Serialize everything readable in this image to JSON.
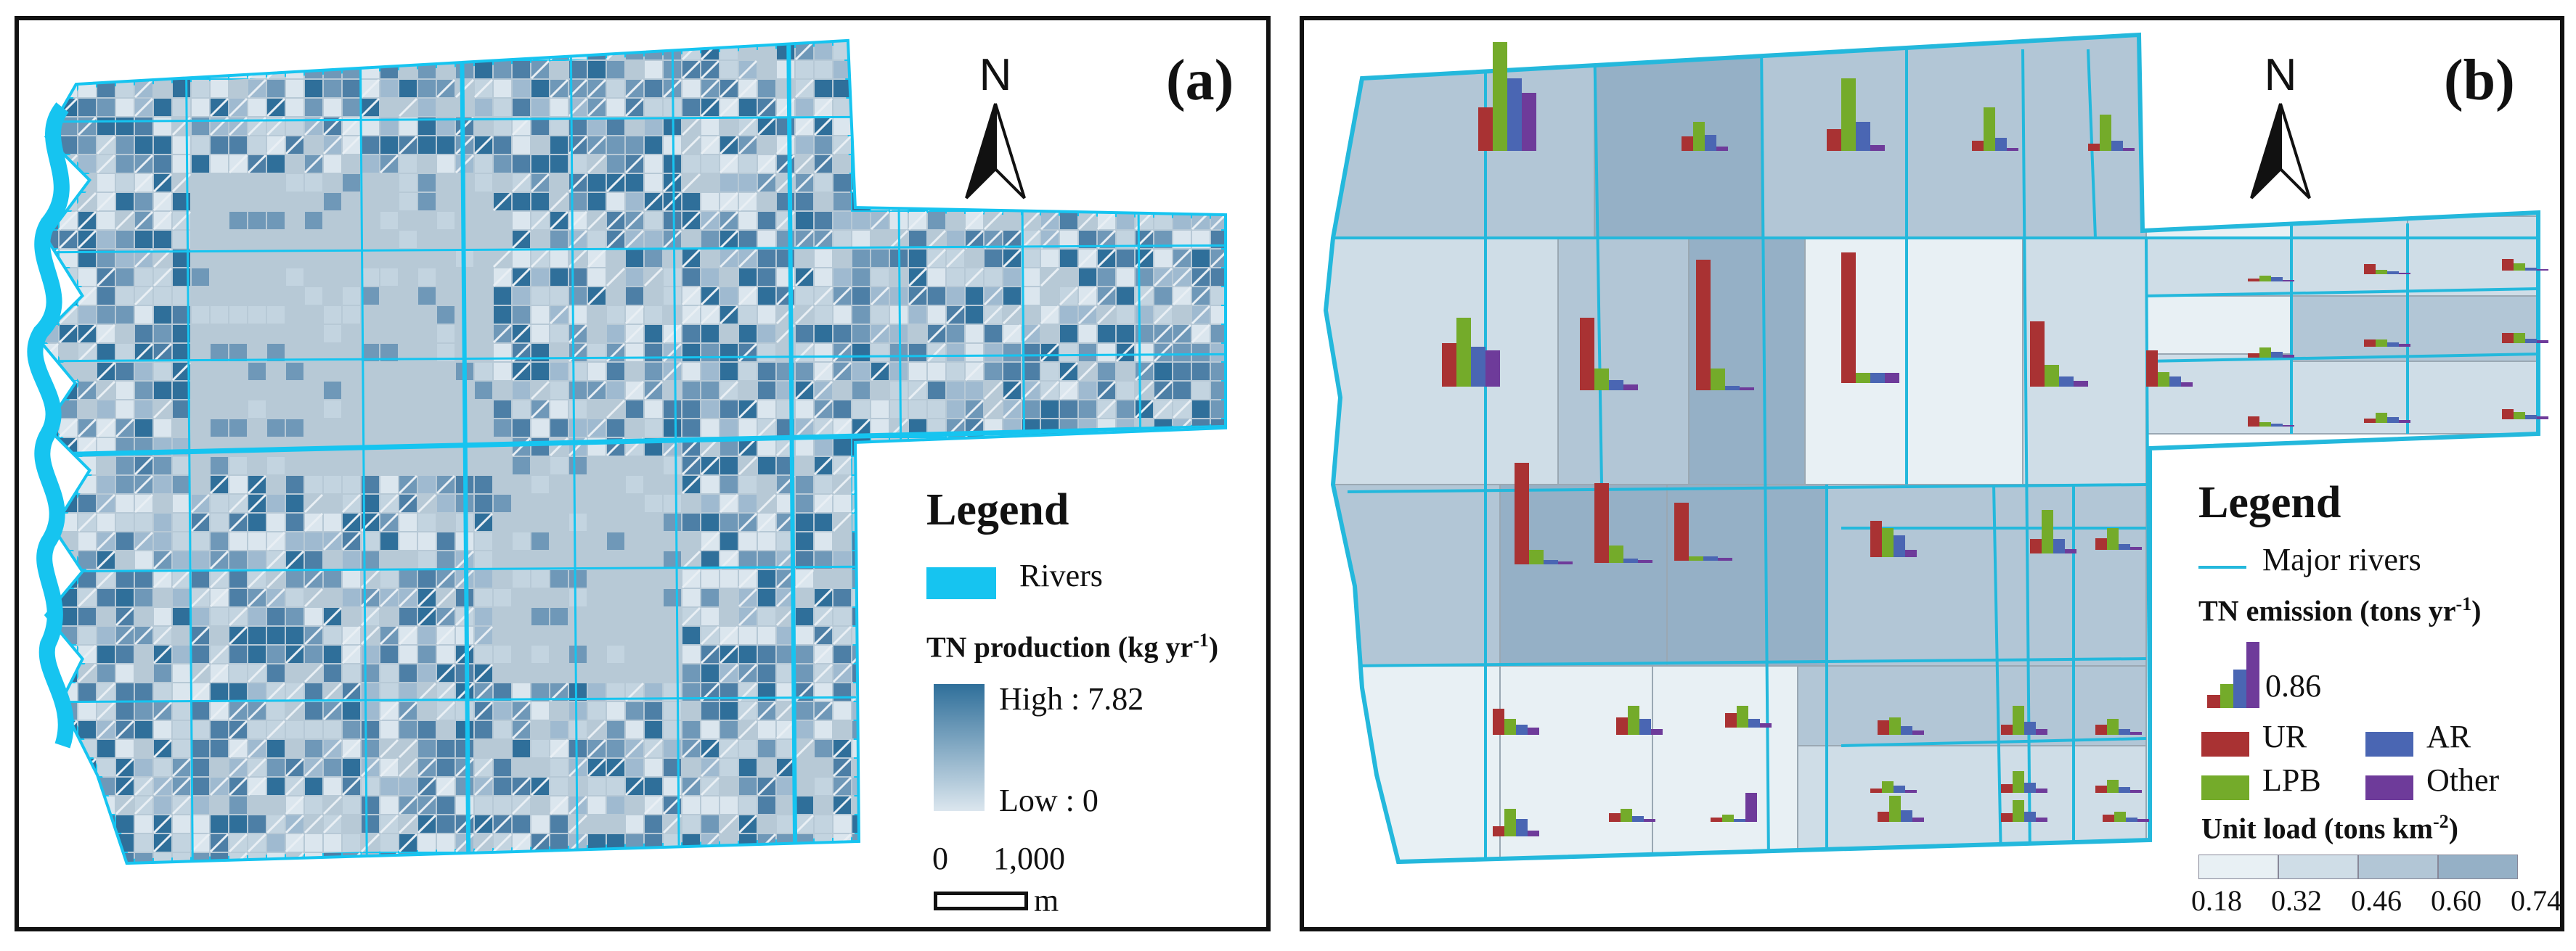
{
  "panel_a": {
    "label": "(a)",
    "north": "N",
    "legend": {
      "title": "Legend",
      "rivers": "Rivers",
      "tn_title": "TN production (kg yr",
      "tn_sup": "-1",
      "tn_close": ")",
      "high": "High : 7.82",
      "low": "Low : 0",
      "scale_0": "0",
      "scale_1000": "1,000",
      "scale_unit": "m"
    },
    "colors": {
      "river": "#16c4f0",
      "low": "#dbe6ee",
      "high": "#2f6f9a",
      "base": "#b7c9d6"
    }
  },
  "panel_b": {
    "label": "(b)",
    "north": "N",
    "legend": {
      "title": "Legend",
      "major_rivers": "Major rivers",
      "tn_title": "TN emission (tons yr",
      "tn_sup": "-1",
      "tn_close": ")",
      "bar_value": "0.86",
      "series": [
        {
          "name": "UR",
          "color": "#a93233"
        },
        {
          "name": "AR",
          "color": "#4a66b3"
        },
        {
          "name": "LPB",
          "color": "#74ab2a"
        },
        {
          "name": "Other",
          "color": "#6e3b9a"
        }
      ],
      "unit_title": "Unit load (tons km",
      "unit_sup": "-2",
      "unit_close": ")",
      "classes": [
        "0.18",
        "0.32",
        "0.46",
        "0.60",
        "0.74"
      ],
      "class_colors": [
        "#e8f0f4",
        "#cfdde7",
        "#b2c6d6",
        "#95b0c6",
        "#7ec0d6"
      ]
    },
    "river_color": "#24b8dc"
  }
}
